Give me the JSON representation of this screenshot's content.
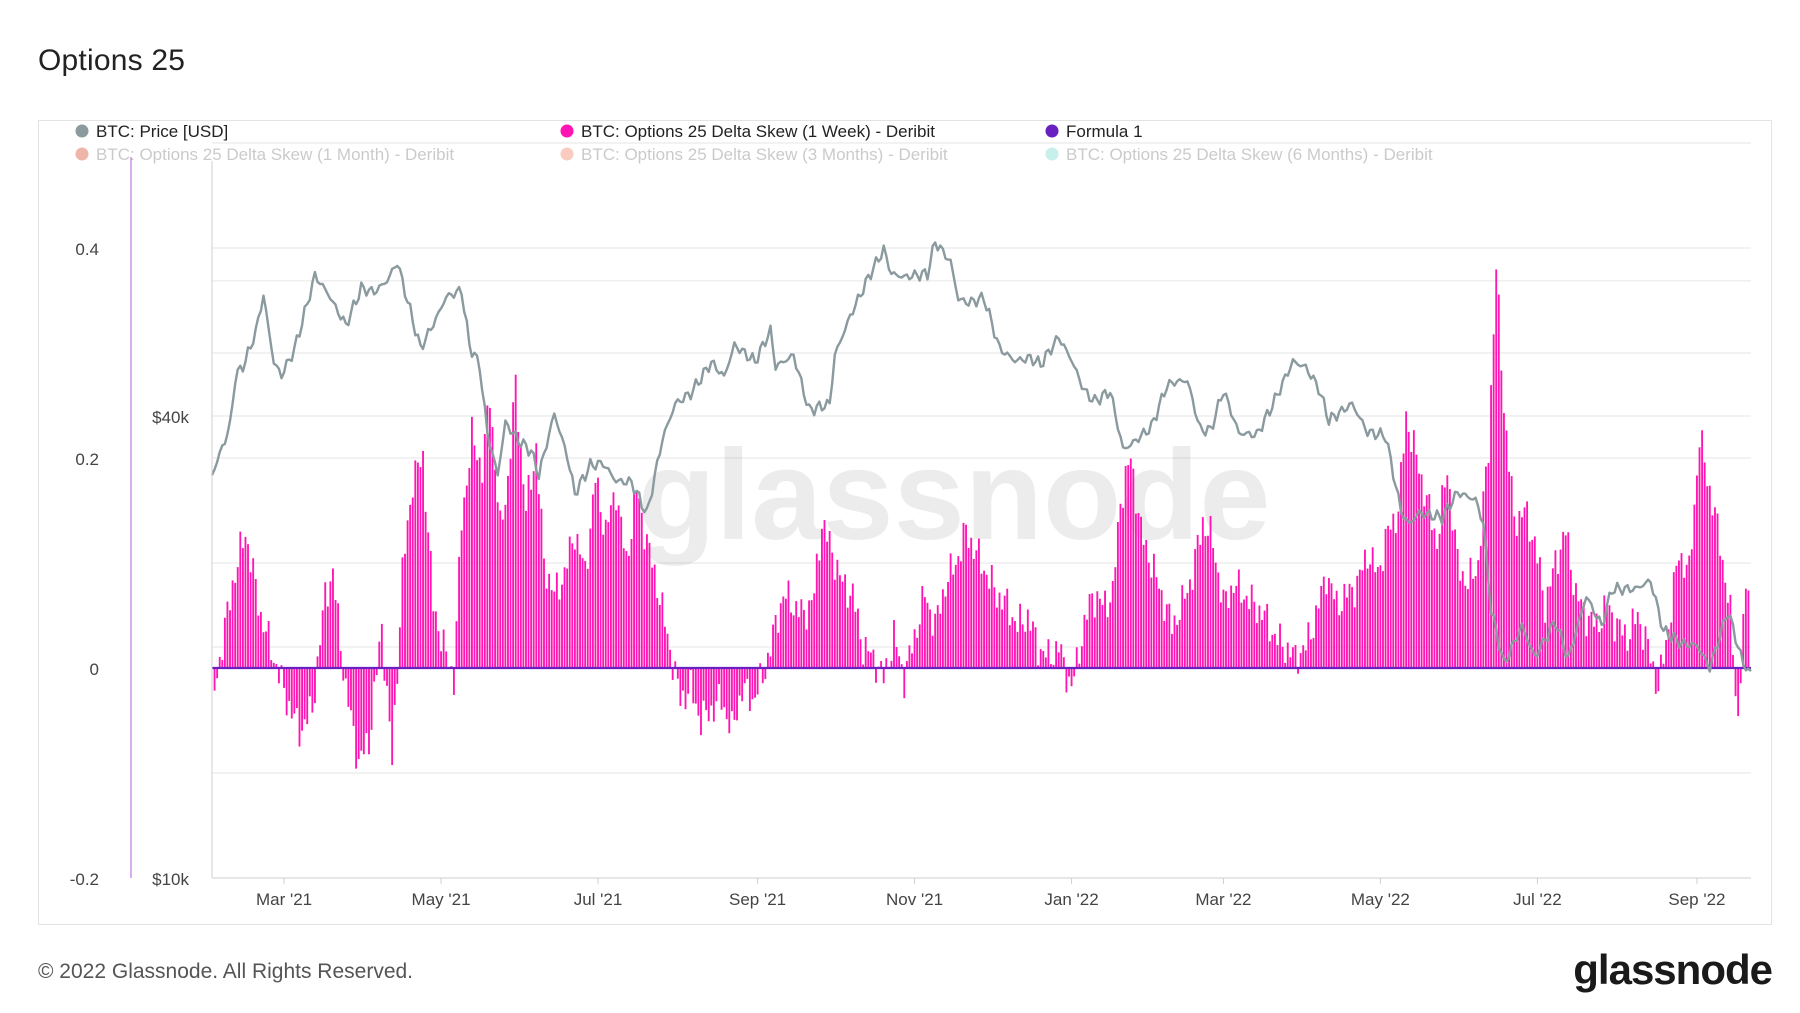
{
  "page": {
    "title": "Options 25",
    "copyright": "© 2022 Glassnode. All Rights Reserved.",
    "logo_text": "glassnode",
    "watermark": "glassnode"
  },
  "colors": {
    "price": "#8a9a9e",
    "skew_1w": "#ff14b4",
    "formula": "#6a1fc0",
    "skew_1m": "#d2411f",
    "skew_3m": "#f2785a",
    "skew_6m": "#6fd6cc",
    "grid": "#e6e6e6",
    "axis_text": "#444444"
  },
  "chart_data": {
    "type": "bar",
    "title": "Options 25",
    "legend_position": "top",
    "legend": [
      {
        "key": "price",
        "label": "BTC: Price [USD]",
        "active": true
      },
      {
        "key": "skew_1w",
        "label": "BTC: Options 25 Delta Skew (1 Week) - Deribit",
        "active": true
      },
      {
        "key": "formula",
        "label": "Formula 1",
        "active": true
      },
      {
        "key": "skew_1m",
        "label": "BTC: Options 25 Delta Skew (1 Month) - Deribit",
        "active": false
      },
      {
        "key": "skew_3m",
        "label": "BTC: Options 25 Delta Skew (3 Months) - Deribit",
        "active": false
      },
      {
        "key": "skew_6m",
        "label": "BTC: Options 25 Delta Skew (6 Months) - Deribit",
        "active": false
      }
    ],
    "x_start": "2021-02-01",
    "x_end": "2022-09-22",
    "x_ticks": [
      {
        "date": "2021-03-01",
        "label": "Mar '21"
      },
      {
        "date": "2021-05-01",
        "label": "May '21"
      },
      {
        "date": "2021-07-01",
        "label": "Jul '21"
      },
      {
        "date": "2021-09-01",
        "label": "Sep '21"
      },
      {
        "date": "2021-11-01",
        "label": "Nov '21"
      },
      {
        "date": "2022-01-01",
        "label": "Jan '22"
      },
      {
        "date": "2022-03-01",
        "label": "Mar '22"
      },
      {
        "date": "2022-05-01",
        "label": "May '22"
      },
      {
        "date": "2022-07-01",
        "label": "Jul '22"
      },
      {
        "date": "2022-09-01",
        "label": "Sep '22"
      }
    ],
    "y_left": {
      "range": [
        -0.2,
        0.46
      ],
      "ticks": [
        {
          "value": 0.4,
          "label": "0.4"
        },
        {
          "value": 0.2,
          "label": "0.2"
        },
        {
          "value": 0,
          "label": "0"
        },
        {
          "value": -0.2,
          "label": "-0.2"
        }
      ]
    },
    "y_price": {
      "scale": "log",
      "range": [
        10000,
        80000
      ],
      "ticks": [
        {
          "value": 40000,
          "label": "$40k"
        },
        {
          "value": 10000,
          "label": "$10k"
        }
      ]
    },
    "price_series": {
      "name": "BTC: Price [USD]",
      "points": [
        [
          "2021-02-01",
          33500
        ],
        [
          "2021-02-08",
          38800
        ],
        [
          "2021-02-10",
          44800
        ],
        [
          "2021-02-14",
          47200
        ],
        [
          "2021-02-18",
          51500
        ],
        [
          "2021-02-21",
          57500
        ],
        [
          "2021-02-25",
          47000
        ],
        [
          "2021-02-28",
          45200
        ],
        [
          "2021-03-05",
          48800
        ],
        [
          "2021-03-10",
          56000
        ],
        [
          "2021-03-13",
          61000
        ],
        [
          "2021-03-18",
          57800
        ],
        [
          "2021-03-25",
          52500
        ],
        [
          "2021-03-31",
          58700
        ],
        [
          "2021-04-05",
          58000
        ],
        [
          "2021-04-10",
          60000
        ],
        [
          "2021-04-14",
          63500
        ],
        [
          "2021-04-18",
          56500
        ],
        [
          "2021-04-23",
          49000
        ],
        [
          "2021-04-29",
          53500
        ],
        [
          "2021-05-03",
          57200
        ],
        [
          "2021-05-09",
          58300
        ],
        [
          "2021-05-12",
          49500
        ],
        [
          "2021-05-16",
          46500
        ],
        [
          "2021-05-19",
          38000
        ],
        [
          "2021-05-23",
          33500
        ],
        [
          "2021-05-26",
          39200
        ],
        [
          "2021-05-31",
          37200
        ],
        [
          "2021-06-05",
          36000
        ],
        [
          "2021-06-08",
          33500
        ],
        [
          "2021-06-14",
          40300
        ],
        [
          "2021-06-19",
          35500
        ],
        [
          "2021-06-22",
          31700
        ],
        [
          "2021-06-28",
          34500
        ],
        [
          "2021-07-03",
          34700
        ],
        [
          "2021-07-08",
          32900
        ],
        [
          "2021-07-14",
          32800
        ],
        [
          "2021-07-20",
          29800
        ],
        [
          "2021-07-26",
          37300
        ],
        [
          "2021-07-31",
          41500
        ],
        [
          "2021-08-06",
          42800
        ],
        [
          "2021-08-14",
          47000
        ],
        [
          "2021-08-19",
          45000
        ],
        [
          "2021-08-23",
          49500
        ],
        [
          "2021-08-31",
          47100
        ],
        [
          "2021-09-06",
          51700
        ],
        [
          "2021-09-08",
          46400
        ],
        [
          "2021-09-15",
          48000
        ],
        [
          "2021-09-21",
          40700
        ],
        [
          "2021-09-29",
          41500
        ],
        [
          "2021-10-01",
          48000
        ],
        [
          "2021-10-07",
          54000
        ],
        [
          "2021-10-15",
          61500
        ],
        [
          "2021-10-20",
          65900
        ],
        [
          "2021-10-23",
          61300
        ],
        [
          "2021-10-28",
          60700
        ],
        [
          "2021-11-01",
          61000
        ],
        [
          "2021-11-06",
          61300
        ],
        [
          "2021-11-09",
          67500
        ],
        [
          "2021-11-15",
          63500
        ],
        [
          "2021-11-18",
          56800
        ],
        [
          "2021-11-22",
          56200
        ],
        [
          "2021-11-28",
          57000
        ],
        [
          "2021-12-04",
          49000
        ],
        [
          "2021-12-10",
          47200
        ],
        [
          "2021-12-16",
          47600
        ],
        [
          "2021-12-20",
          46700
        ],
        [
          "2021-12-27",
          50700
        ],
        [
          "2022-01-01",
          47300
        ],
        [
          "2022-01-06",
          43100
        ],
        [
          "2022-01-10",
          41800
        ],
        [
          "2022-01-16",
          43100
        ],
        [
          "2022-01-21",
          36200
        ],
        [
          "2022-01-24",
          36700
        ],
        [
          "2022-02-01",
          38700
        ],
        [
          "2022-02-07",
          43800
        ],
        [
          "2022-02-10",
          44300
        ],
        [
          "2022-02-15",
          44500
        ],
        [
          "2022-02-20",
          38400
        ],
        [
          "2022-02-24",
          38300
        ],
        [
          "2022-03-01",
          43200
        ],
        [
          "2022-03-07",
          38000
        ],
        [
          "2022-03-14",
          37800
        ],
        [
          "2022-03-20",
          41300
        ],
        [
          "2022-03-28",
          47100
        ],
        [
          "2022-04-02",
          46300
        ],
        [
          "2022-04-07",
          43500
        ],
        [
          "2022-04-11",
          39500
        ],
        [
          "2022-04-20",
          41500
        ],
        [
          "2022-04-26",
          38100
        ],
        [
          "2022-05-03",
          37700
        ],
        [
          "2022-05-09",
          30100
        ],
        [
          "2022-05-12",
          28900
        ],
        [
          "2022-05-16",
          29900
        ],
        [
          "2022-05-25",
          29500
        ],
        [
          "2022-05-31",
          31800
        ],
        [
          "2022-06-07",
          31100
        ],
        [
          "2022-06-10",
          29000
        ],
        [
          "2022-06-13",
          22400
        ],
        [
          "2022-06-18",
          19000
        ],
        [
          "2022-06-25",
          21300
        ],
        [
          "2022-06-30",
          19400
        ],
        [
          "2022-07-08",
          21600
        ],
        [
          "2022-07-13",
          19300
        ],
        [
          "2022-07-20",
          23300
        ],
        [
          "2022-07-26",
          21300
        ],
        [
          "2022-07-30",
          23800
        ],
        [
          "2022-08-08",
          23800
        ],
        [
          "2022-08-14",
          24400
        ],
        [
          "2022-08-19",
          21000
        ],
        [
          "2022-08-26",
          20200
        ],
        [
          "2022-09-01",
          20100
        ],
        [
          "2022-09-06",
          18800
        ],
        [
          "2022-09-13",
          22300
        ],
        [
          "2022-09-19",
          19000
        ],
        [
          "2022-09-22",
          18500
        ]
      ]
    },
    "skew_1w_series": {
      "name": "BTC: Options 25 Delta Skew (1 Week) - Deribit",
      "points": [
        [
          "2021-02-02",
          -0.02
        ],
        [
          "2021-02-09",
          0.08
        ],
        [
          "2021-02-14",
          0.13
        ],
        [
          "2021-02-20",
          0.05
        ],
        [
          "2021-02-25",
          0.01
        ],
        [
          "2021-03-02",
          -0.03
        ],
        [
          "2021-03-07",
          -0.06
        ],
        [
          "2021-03-12",
          -0.04
        ],
        [
          "2021-03-17",
          0.07
        ],
        [
          "2021-03-20",
          0.09
        ],
        [
          "2021-03-25",
          -0.02
        ],
        [
          "2021-03-30",
          -0.09
        ],
        [
          "2021-04-03",
          -0.07
        ],
        [
          "2021-04-08",
          0.04
        ],
        [
          "2021-04-12",
          -0.09
        ],
        [
          "2021-04-16",
          0.09
        ],
        [
          "2021-04-20",
          0.18
        ],
        [
          "2021-04-24",
          0.2
        ],
        [
          "2021-04-28",
          0.06
        ],
        [
          "2021-05-02",
          0.02
        ],
        [
          "2021-05-06",
          -0.01
        ],
        [
          "2021-05-09",
          0.14
        ],
        [
          "2021-05-13",
          0.22
        ],
        [
          "2021-05-17",
          0.19
        ],
        [
          "2021-05-20",
          0.26
        ],
        [
          "2021-05-24",
          0.13
        ],
        [
          "2021-05-27",
          0.18
        ],
        [
          "2021-05-30",
          0.27
        ],
        [
          "2021-06-03",
          0.15
        ],
        [
          "2021-06-07",
          0.21
        ],
        [
          "2021-06-10",
          0.1
        ],
        [
          "2021-06-14",
          0.07
        ],
        [
          "2021-06-18",
          0.09
        ],
        [
          "2021-06-22",
          0.13
        ],
        [
          "2021-06-26",
          0.09
        ],
        [
          "2021-06-30",
          0.18
        ],
        [
          "2021-07-04",
          0.13
        ],
        [
          "2021-07-08",
          0.17
        ],
        [
          "2021-07-12",
          0.1
        ],
        [
          "2021-07-16",
          0.17
        ],
        [
          "2021-07-20",
          0.12
        ],
        [
          "2021-07-24",
          0.08
        ],
        [
          "2021-07-28",
          0.03
        ],
        [
          "2021-08-02",
          -0.03
        ],
        [
          "2021-08-06",
          -0.02
        ],
        [
          "2021-08-10",
          -0.05
        ],
        [
          "2021-08-14",
          -0.04
        ],
        [
          "2021-08-18",
          -0.03
        ],
        [
          "2021-08-22",
          -0.06
        ],
        [
          "2021-08-26",
          -0.02
        ],
        [
          "2021-08-30",
          -0.03
        ],
        [
          "2021-09-03",
          -0.01
        ],
        [
          "2021-09-07",
          0.03
        ],
        [
          "2021-09-11",
          0.07
        ],
        [
          "2021-09-15",
          0.06
        ],
        [
          "2021-09-19",
          0.05
        ],
        [
          "2021-09-23",
          0.07
        ],
        [
          "2021-09-26",
          0.14
        ],
        [
          "2021-09-30",
          0.11
        ],
        [
          "2021-10-04",
          0.08
        ],
        [
          "2021-10-08",
          0.07
        ],
        [
          "2021-10-12",
          0.02
        ],
        [
          "2021-10-16",
          0.01
        ],
        [
          "2021-10-20",
          -0.01
        ],
        [
          "2021-10-24",
          0.03
        ],
        [
          "2021-10-28",
          -0.01
        ],
        [
          "2021-11-01",
          0.03
        ],
        [
          "2021-11-05",
          0.07
        ],
        [
          "2021-11-09",
          0.04
        ],
        [
          "2021-11-13",
          0.08
        ],
        [
          "2021-11-17",
          0.1
        ],
        [
          "2021-11-21",
          0.13
        ],
        [
          "2021-11-25",
          0.11
        ],
        [
          "2021-11-29",
          0.09
        ],
        [
          "2021-12-03",
          0.07
        ],
        [
          "2021-12-07",
          0.06
        ],
        [
          "2021-12-11",
          0.04
        ],
        [
          "2021-12-15",
          0.05
        ],
        [
          "2021-12-19",
          0.02
        ],
        [
          "2021-12-23",
          0.01
        ],
        [
          "2021-12-27",
          0.02
        ],
        [
          "2022-01-01",
          -0.02
        ],
        [
          "2022-01-05",
          0.03
        ],
        [
          "2022-01-09",
          0.07
        ],
        [
          "2022-01-13",
          0.06
        ],
        [
          "2022-01-17",
          0.07
        ],
        [
          "2022-01-20",
          0.16
        ],
        [
          "2022-01-24",
          0.2
        ],
        [
          "2022-01-28",
          0.13
        ],
        [
          "2022-02-01",
          0.1
        ],
        [
          "2022-02-05",
          0.07
        ],
        [
          "2022-02-09",
          0.04
        ],
        [
          "2022-02-13",
          0.06
        ],
        [
          "2022-02-17",
          0.09
        ],
        [
          "2022-02-21",
          0.14
        ],
        [
          "2022-02-25",
          0.12
        ],
        [
          "2022-03-01",
          0.06
        ],
        [
          "2022-03-05",
          0.08
        ],
        [
          "2022-03-09",
          0.07
        ],
        [
          "2022-03-13",
          0.06
        ],
        [
          "2022-03-17",
          0.05
        ],
        [
          "2022-03-21",
          0.03
        ],
        [
          "2022-03-25",
          0.02
        ],
        [
          "2022-03-29",
          0.01
        ],
        [
          "2022-04-02",
          0.02
        ],
        [
          "2022-04-06",
          0.05
        ],
        [
          "2022-04-10",
          0.09
        ],
        [
          "2022-04-14",
          0.06
        ],
        [
          "2022-04-18",
          0.07
        ],
        [
          "2022-04-22",
          0.08
        ],
        [
          "2022-04-26",
          0.11
        ],
        [
          "2022-04-30",
          0.09
        ],
        [
          "2022-05-04",
          0.13
        ],
        [
          "2022-05-08",
          0.15
        ],
        [
          "2022-05-11",
          0.24
        ],
        [
          "2022-05-15",
          0.2
        ],
        [
          "2022-05-19",
          0.16
        ],
        [
          "2022-05-23",
          0.12
        ],
        [
          "2022-05-27",
          0.19
        ],
        [
          "2022-05-31",
          0.1
        ],
        [
          "2022-06-04",
          0.08
        ],
        [
          "2022-06-08",
          0.1
        ],
        [
          "2022-06-12",
          0.21
        ],
        [
          "2022-06-15",
          0.38
        ],
        [
          "2022-06-18",
          0.25
        ],
        [
          "2022-06-22",
          0.14
        ],
        [
          "2022-06-26",
          0.15
        ],
        [
          "2022-06-30",
          0.12
        ],
        [
          "2022-07-04",
          0.06
        ],
        [
          "2022-07-08",
          0.1
        ],
        [
          "2022-07-12",
          0.13
        ],
        [
          "2022-07-16",
          0.07
        ],
        [
          "2022-07-20",
          0.05
        ],
        [
          "2022-07-24",
          0.04
        ],
        [
          "2022-07-28",
          0.06
        ],
        [
          "2022-08-01",
          0.04
        ],
        [
          "2022-08-05",
          0.03
        ],
        [
          "2022-08-09",
          0.05
        ],
        [
          "2022-08-13",
          0.02
        ],
        [
          "2022-08-17",
          -0.02
        ],
        [
          "2022-08-21",
          0.04
        ],
        [
          "2022-08-25",
          0.11
        ],
        [
          "2022-08-29",
          0.09
        ],
        [
          "2022-09-02",
          0.22
        ],
        [
          "2022-09-06",
          0.17
        ],
        [
          "2022-09-10",
          0.12
        ],
        [
          "2022-09-14",
          0.05
        ],
        [
          "2022-09-17",
          -0.05
        ],
        [
          "2022-09-19",
          0.04
        ],
        [
          "2022-09-21",
          0.09
        ]
      ]
    },
    "formula_series": {
      "name": "Formula 1",
      "value": 0
    }
  }
}
